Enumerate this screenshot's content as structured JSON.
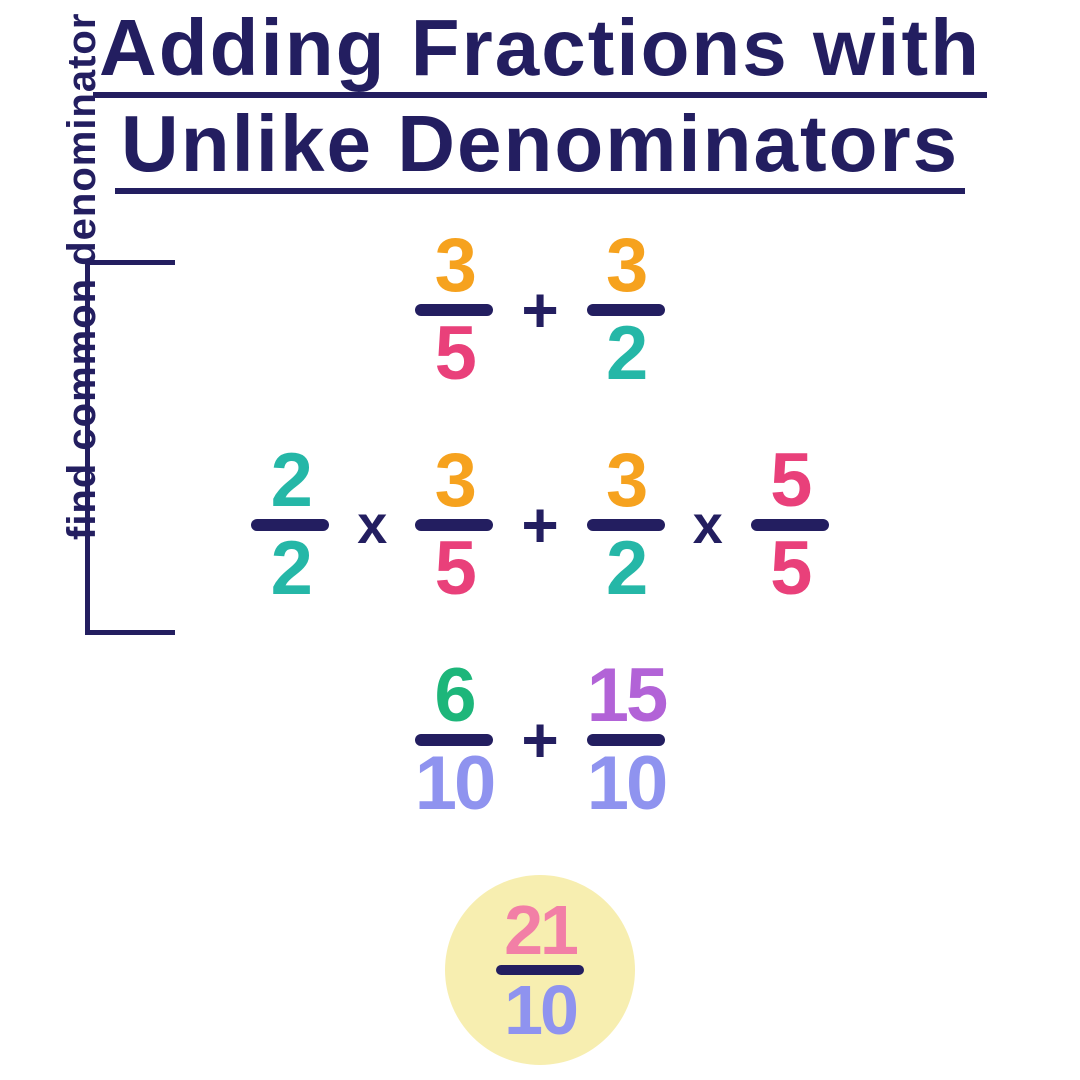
{
  "type": "infographic",
  "background_color": "#ffffff",
  "colors": {
    "navy": "#231e60",
    "orange": "#f6a21e",
    "pink": "#e9407a",
    "teal": "#25b7a7",
    "green": "#1db67a",
    "periwinkle": "#8f93ef",
    "purple": "#b263d7",
    "lightpink": "#f27fa6",
    "cream": "#f7eeb0",
    "label_color": "#231e60"
  },
  "title": {
    "line1": "Adding Fractions with",
    "line2": "Unlike Denominators",
    "color": "#231e60",
    "underline_color": "#231e60",
    "fontsize": 80
  },
  "side_label": {
    "text": "find common denominator",
    "color": "#231e60",
    "fontsize": 40
  },
  "bracket_color": "#231e60",
  "bar_color": "#231e60",
  "op_color": "#231e60",
  "operators": {
    "plus": "+",
    "times": "x"
  },
  "row1": {
    "f1": {
      "num": "3",
      "den": "5",
      "num_color": "#f6a21e",
      "den_color": "#e9407a"
    },
    "f2": {
      "num": "3",
      "den": "2",
      "num_color": "#f6a21e",
      "den_color": "#25b7a7"
    }
  },
  "row2": {
    "f1": {
      "num": "2",
      "den": "2",
      "num_color": "#25b7a7",
      "den_color": "#25b7a7"
    },
    "f2": {
      "num": "3",
      "den": "5",
      "num_color": "#f6a21e",
      "den_color": "#e9407a"
    },
    "f3": {
      "num": "3",
      "den": "2",
      "num_color": "#f6a21e",
      "den_color": "#25b7a7"
    },
    "f4": {
      "num": "5",
      "den": "5",
      "num_color": "#e9407a",
      "den_color": "#e9407a"
    }
  },
  "row3": {
    "f1": {
      "num": "6",
      "den": "10",
      "num_color": "#1db67a",
      "den_color": "#8f93ef"
    },
    "f2": {
      "num": "15",
      "den": "10",
      "num_color": "#b263d7",
      "den_color": "#8f93ef"
    }
  },
  "answer": {
    "num": "21",
    "den": "10",
    "num_color": "#f27fa6",
    "den_color": "#8f93ef",
    "circle_color": "#f7eeb0"
  }
}
